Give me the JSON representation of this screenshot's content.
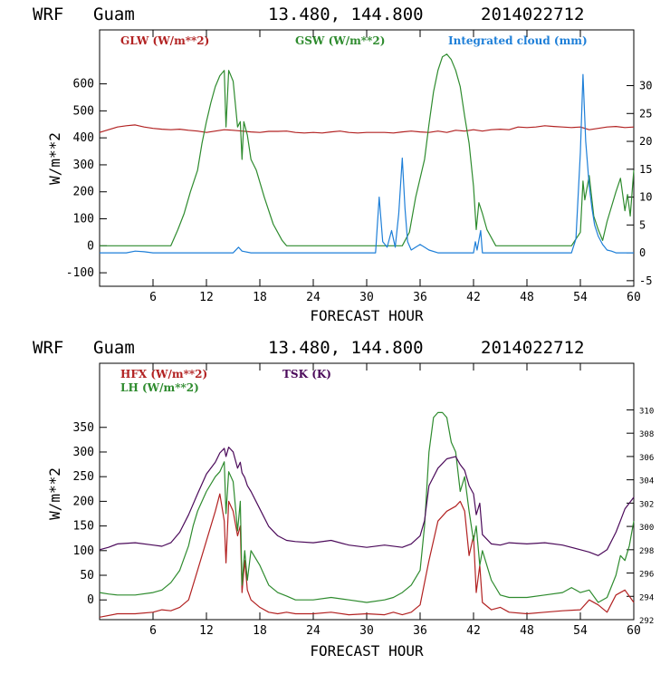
{
  "panels": [
    {
      "header": {
        "model": "WRF",
        "location": "Guam",
        "coords": "13.480, 144.800",
        "run": "2014022712"
      },
      "legend": [
        {
          "label": "GLW (W/m**2)",
          "color": "#b22222"
        },
        {
          "label": "GSW (W/m**2)",
          "color": "#2e8b2e"
        },
        {
          "label": "Integrated cloud (mm)",
          "color": "#1e7fd8"
        }
      ],
      "xlabel": "FORECAST HOUR",
      "ylabel": "W/m**2"
    },
    {
      "header": {
        "model": "WRF",
        "location": "Guam",
        "coords": "13.480, 144.800",
        "run": "2014022712"
      },
      "legend": [
        {
          "label": "HFX (W/m**2)",
          "color": "#b22222"
        },
        {
          "label": "LH  (W/m**2)",
          "color": "#2e8b2e"
        },
        {
          "label": "TSK (K)",
          "color": "#4b0a5a"
        }
      ],
      "xlabel": "FORECAST HOUR",
      "ylabel": "W/m**2"
    }
  ],
  "chart_data": [
    {
      "type": "line",
      "title": "WRF Guam 13.480, 144.800 2014022712",
      "xlabel": "FORECAST HOUR",
      "ylabel": "W/m**2",
      "xlim": [
        0,
        60
      ],
      "ylim": [
        -150,
        800
      ],
      "y2lim": [
        -6,
        40
      ],
      "x_ticks": [
        6,
        12,
        18,
        24,
        30,
        36,
        42,
        48,
        54,
        60
      ],
      "y_ticks": [
        -100,
        0,
        100,
        200,
        300,
        400,
        500,
        600
      ],
      "y2_ticks": [
        -5,
        0,
        5,
        10,
        15,
        20,
        25,
        30
      ],
      "series": [
        {
          "name": "GLW (W/m**2)",
          "color": "#b22222",
          "axis": "left",
          "x": [
            0,
            1,
            2,
            3,
            4,
            5,
            6,
            7,
            8,
            9,
            10,
            11,
            12,
            13,
            14,
            15,
            16,
            17,
            18,
            19,
            20,
            21,
            22,
            23,
            24,
            25,
            26,
            27,
            28,
            29,
            30,
            31,
            32,
            33,
            34,
            35,
            36,
            37,
            38,
            39,
            40,
            41,
            42,
            43,
            44,
            45,
            46,
            47,
            48,
            49,
            50,
            51,
            52,
            53,
            54,
            55,
            56,
            57,
            58,
            59,
            60
          ],
          "y": [
            420,
            430,
            440,
            445,
            448,
            440,
            435,
            432,
            430,
            432,
            428,
            425,
            420,
            425,
            430,
            428,
            425,
            422,
            420,
            424,
            424,
            425,
            420,
            418,
            420,
            418,
            422,
            425,
            420,
            418,
            420,
            420,
            420,
            418,
            422,
            425,
            422,
            420,
            425,
            420,
            428,
            425,
            430,
            425,
            430,
            432,
            430,
            440,
            438,
            440,
            445,
            442,
            440,
            438,
            440,
            430,
            435,
            440,
            442,
            438,
            440
          ]
        },
        {
          "name": "GSW (W/m**2)",
          "color": "#2e8b2e",
          "axis": "left",
          "x": [
            0,
            8,
            8.8,
            9.5,
            10.2,
            11,
            11.5,
            12,
            12.5,
            13,
            13.5,
            14,
            14.2,
            14.5,
            15,
            15.5,
            15.8,
            16,
            16.2,
            16.6,
            17,
            17.6,
            18.5,
            19.5,
            20.5,
            21,
            31,
            33,
            34,
            34.8,
            35.5,
            36.5,
            37,
            37.5,
            38,
            38.5,
            39,
            39.5,
            40,
            40.5,
            41,
            41.5,
            42,
            42.3,
            42.6,
            43,
            43.5,
            44.5,
            45,
            51,
            53,
            54,
            54.3,
            54.5,
            55,
            55.5,
            56,
            56.5,
            57,
            58,
            58.5,
            59,
            59.3,
            59.6,
            60
          ],
          "y": [
            0,
            0,
            60,
            120,
            200,
            280,
            380,
            460,
            530,
            590,
            630,
            650,
            440,
            650,
            610,
            440,
            460,
            320,
            460,
            410,
            320,
            280,
            180,
            80,
            20,
            0,
            0,
            0,
            0,
            50,
            180,
            320,
            450,
            570,
            650,
            700,
            710,
            690,
            650,
            590,
            480,
            380,
            220,
            60,
            160,
            120,
            60,
            0,
            0,
            0,
            0,
            50,
            240,
            170,
            260,
            110,
            60,
            20,
            90,
            200,
            250,
            130,
            190,
            110,
            280
          ]
        },
        {
          "name": "Integrated cloud (mm)",
          "color": "#1e7fd8",
          "axis": "right",
          "x": [
            0,
            3,
            4,
            5,
            6,
            14,
            15,
            15.6,
            16,
            17,
            26,
            31,
            31.4,
            31.8,
            32.3,
            32.8,
            33.2,
            33.6,
            34,
            34.3,
            34.6,
            35,
            35.5,
            36,
            36.5,
            37,
            38,
            40,
            42,
            42.2,
            42.4,
            42.8,
            43,
            53,
            53.5,
            54,
            54.3,
            54.6,
            55,
            55.3,
            55.6,
            56,
            56.5,
            57,
            57.5,
            58,
            59,
            60
          ],
          "y": [
            0,
            0,
            0.3,
            0.2,
            0,
            0,
            0,
            1,
            0.3,
            0,
            0,
            0,
            10,
            2,
            1,
            4,
            1,
            7,
            17,
            8,
            2,
            0.5,
            1,
            1.5,
            1,
            0.5,
            0,
            0,
            0,
            2,
            0.5,
            4,
            0,
            0,
            2.5,
            18,
            32,
            20,
            12,
            8,
            5,
            3,
            1.5,
            0.5,
            0.3,
            0,
            0,
            0
          ]
        }
      ]
    },
    {
      "type": "line",
      "title": "WRF Guam 13.480, 144.800 2014022712",
      "xlabel": "FORECAST HOUR",
      "ylabel": "W/m**2",
      "xlim": [
        0,
        60
      ],
      "ylim": [
        -40,
        480
      ],
      "y2lim": [
        292,
        314
      ],
      "x_ticks": [
        6,
        12,
        18,
        24,
        30,
        36,
        42,
        48,
        54,
        60
      ],
      "y_ticks": [
        0,
        50,
        100,
        150,
        200,
        250,
        300,
        350
      ],
      "y2_ticks": [
        292,
        294,
        296,
        298,
        300,
        302,
        304,
        306,
        308,
        310
      ],
      "series": [
        {
          "name": "HFX (W/m**2)",
          "color": "#b22222",
          "axis": "left",
          "x": [
            0,
            2,
            4,
            6,
            7,
            8,
            9,
            10,
            11,
            12,
            13,
            13.5,
            14,
            14.2,
            14.5,
            15,
            15.5,
            15.8,
            16,
            16.3,
            16.6,
            17,
            18,
            19,
            20,
            21,
            22,
            24,
            26,
            28,
            30,
            32,
            33,
            34,
            35,
            36,
            37,
            38,
            39,
            40,
            40.5,
            41,
            41.5,
            42,
            42.3,
            42.7,
            43,
            44,
            45,
            46,
            48,
            50,
            52,
            54,
            55,
            56,
            57,
            58,
            59,
            60
          ],
          "y": [
            -35,
            -28,
            -28,
            -25,
            -20,
            -22,
            -15,
            0,
            60,
            120,
            180,
            215,
            160,
            75,
            200,
            180,
            130,
            150,
            15,
            80,
            20,
            0,
            -15,
            -25,
            -28,
            -25,
            -28,
            -28,
            -25,
            -30,
            -28,
            -30,
            -25,
            -30,
            -25,
            -10,
            80,
            160,
            180,
            190,
            200,
            180,
            90,
            130,
            15,
            70,
            -5,
            -20,
            -15,
            -25,
            -28,
            -25,
            -22,
            -20,
            0,
            -10,
            -25,
            10,
            20,
            -5
          ]
        },
        {
          "name": "LH  (W/m**2)",
          "color": "#2e8b2e",
          "axis": "left",
          "x": [
            0,
            1,
            2,
            4,
            6,
            7,
            8,
            9,
            10,
            10.5,
            11,
            12,
            13,
            13.5,
            14,
            14.2,
            14.5,
            15,
            15.5,
            15.8,
            16,
            16.3,
            16.6,
            17,
            18,
            19,
            20,
            21,
            22,
            24,
            26,
            28,
            30,
            32,
            33,
            34,
            35,
            36,
            36.5,
            37,
            37.5,
            38,
            38.5,
            39,
            39.5,
            40,
            40.5,
            41,
            41.5,
            42,
            42.3,
            42.7,
            43,
            44,
            45,
            46,
            48,
            50,
            52,
            53,
            54,
            55,
            56,
            57,
            58,
            58.5,
            59,
            59.5,
            60
          ],
          "y": [
            15,
            12,
            10,
            10,
            15,
            20,
            35,
            60,
            110,
            150,
            180,
            220,
            250,
            260,
            280,
            175,
            260,
            240,
            140,
            200,
            30,
            100,
            40,
            100,
            70,
            30,
            15,
            8,
            0,
            0,
            5,
            0,
            -5,
            0,
            5,
            15,
            30,
            60,
            150,
            300,
            370,
            380,
            380,
            370,
            320,
            300,
            220,
            250,
            180,
            120,
            150,
            70,
            100,
            40,
            10,
            5,
            5,
            10,
            15,
            25,
            15,
            20,
            -5,
            5,
            50,
            90,
            80,
            110,
            160
          ]
        },
        {
          "name": "TSK (K)",
          "color": "#4b0a5a",
          "axis": "right",
          "x": [
            0,
            1,
            2,
            4,
            6,
            7,
            8,
            9,
            10,
            11,
            12,
            13,
            13.5,
            14,
            14.2,
            14.5,
            15,
            15.5,
            15.8,
            16,
            16.3,
            16.6,
            17,
            18,
            19,
            20,
            21,
            22,
            24,
            26,
            28,
            30,
            32,
            34,
            35,
            36,
            36.5,
            37,
            38,
            39,
            40,
            40.5,
            41,
            41.5,
            42,
            42.3,
            42.7,
            43,
            44,
            45,
            46,
            48,
            50,
            52,
            54,
            55,
            56,
            57,
            58,
            58.5,
            59,
            59.5,
            60
          ],
          "y": [
            298,
            298.2,
            298.5,
            298.6,
            298.4,
            298.3,
            298.6,
            299.5,
            301,
            302.8,
            304.5,
            305.5,
            306.3,
            306.7,
            306,
            306.8,
            306.4,
            305,
            305.5,
            304.6,
            304.2,
            303.5,
            303,
            301.5,
            300,
            299.2,
            298.8,
            298.7,
            298.6,
            298.8,
            298.4,
            298.2,
            298.4,
            298.2,
            298.5,
            299.2,
            300.5,
            303.5,
            305,
            305.8,
            306,
            305.3,
            304.8,
            303.5,
            302.8,
            301,
            302,
            299.3,
            298.5,
            298.4,
            298.6,
            298.5,
            298.6,
            298.4,
            298,
            297.8,
            297.5,
            298,
            299.5,
            300.5,
            301.5,
            302,
            302.5
          ]
        }
      ]
    }
  ]
}
